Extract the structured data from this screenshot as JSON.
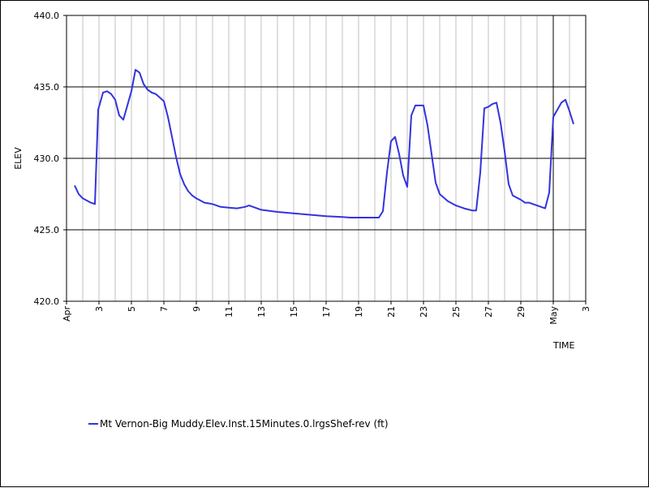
{
  "chart_data": {
    "type": "line",
    "xlabel": "TIME",
    "ylabel": "ELEV",
    "xlim": [
      0,
      32
    ],
    "ylim": [
      420.0,
      440.0
    ],
    "x_ticks": [
      {
        "x": 0,
        "label": "Apr"
      },
      {
        "x": 2,
        "label": "3"
      },
      {
        "x": 4,
        "label": "5"
      },
      {
        "x": 6,
        "label": "7"
      },
      {
        "x": 8,
        "label": "9"
      },
      {
        "x": 10,
        "label": "11"
      },
      {
        "x": 12,
        "label": "13"
      },
      {
        "x": 14,
        "label": "15"
      },
      {
        "x": 16,
        "label": "17"
      },
      {
        "x": 18,
        "label": "19"
      },
      {
        "x": 20,
        "label": "21"
      },
      {
        "x": 22,
        "label": "23"
      },
      {
        "x": 24,
        "label": "25"
      },
      {
        "x": 26,
        "label": "27"
      },
      {
        "x": 28,
        "label": "29"
      },
      {
        "x": 30,
        "label": "May"
      },
      {
        "x": 32,
        "label": "3"
      }
    ],
    "y_ticks": [
      "420.0",
      "425.0",
      "430.0",
      "435.0",
      "440.0"
    ],
    "grid": "vertical grid at each day tick; horizontal lines at 425, 430, 435; vertical marker at May 1",
    "legend_position": "bottom-left",
    "colors": {
      "line": "#3333dd",
      "grid_vertical": "#c0c0c0",
      "grid_horizontal": "#000000"
    },
    "series": [
      {
        "name": "Mt Vernon-Big Muddy.Elev.Inst.15Minutes.0.lrgsShef-rev (ft)",
        "points": [
          [
            0.5,
            428.1
          ],
          [
            0.75,
            427.5
          ],
          [
            1.0,
            427.2
          ],
          [
            1.5,
            426.9
          ],
          [
            1.75,
            426.8
          ],
          [
            1.95,
            433.4
          ],
          [
            2.25,
            434.6
          ],
          [
            2.5,
            434.7
          ],
          [
            2.75,
            434.5
          ],
          [
            3.0,
            434.1
          ],
          [
            3.25,
            433.0
          ],
          [
            3.5,
            432.7
          ],
          [
            4.0,
            434.7
          ],
          [
            4.25,
            436.2
          ],
          [
            4.5,
            436.0
          ],
          [
            4.75,
            435.2
          ],
          [
            5.0,
            434.8
          ],
          [
            5.25,
            434.6
          ],
          [
            5.5,
            434.5
          ],
          [
            6.0,
            434.0
          ],
          [
            6.25,
            432.9
          ],
          [
            6.5,
            431.5
          ],
          [
            6.75,
            430.1
          ],
          [
            7.0,
            428.9
          ],
          [
            7.25,
            428.2
          ],
          [
            7.5,
            427.7
          ],
          [
            7.75,
            427.4
          ],
          [
            8.0,
            427.2
          ],
          [
            8.5,
            426.9
          ],
          [
            9.0,
            426.8
          ],
          [
            9.5,
            426.6
          ],
          [
            10.0,
            426.55
          ],
          [
            10.5,
            426.5
          ],
          [
            11.0,
            426.6
          ],
          [
            11.25,
            426.7
          ],
          [
            11.5,
            426.6
          ],
          [
            12.0,
            426.4
          ],
          [
            13.0,
            426.25
          ],
          [
            14.0,
            426.15
          ],
          [
            15.0,
            426.05
          ],
          [
            16.0,
            425.95
          ],
          [
            17.0,
            425.9
          ],
          [
            17.5,
            425.85
          ],
          [
            18.0,
            425.85
          ],
          [
            18.5,
            425.85
          ],
          [
            19.25,
            425.85
          ],
          [
            19.5,
            426.3
          ],
          [
            19.75,
            429.0
          ],
          [
            20.0,
            431.2
          ],
          [
            20.25,
            431.5
          ],
          [
            20.5,
            430.3
          ],
          [
            20.75,
            428.8
          ],
          [
            21.0,
            428.0
          ],
          [
            21.25,
            433.0
          ],
          [
            21.5,
            433.7
          ],
          [
            22.0,
            433.7
          ],
          [
            22.25,
            432.3
          ],
          [
            22.5,
            430.3
          ],
          [
            22.75,
            428.3
          ],
          [
            23.0,
            427.5
          ],
          [
            23.5,
            427.0
          ],
          [
            24.0,
            426.7
          ],
          [
            24.5,
            426.5
          ],
          [
            25.0,
            426.35
          ],
          [
            25.25,
            426.35
          ],
          [
            25.5,
            429.0
          ],
          [
            25.75,
            433.5
          ],
          [
            26.0,
            433.6
          ],
          [
            26.25,
            433.8
          ],
          [
            26.5,
            433.9
          ],
          [
            26.75,
            432.5
          ],
          [
            27.0,
            430.5
          ],
          [
            27.25,
            428.2
          ],
          [
            27.5,
            427.4
          ],
          [
            28.0,
            427.1
          ],
          [
            28.25,
            426.9
          ],
          [
            28.5,
            426.9
          ],
          [
            29.0,
            426.7
          ],
          [
            29.5,
            426.5
          ],
          [
            29.75,
            427.6
          ],
          [
            30.0,
            432.9
          ],
          [
            30.25,
            433.4
          ],
          [
            30.5,
            433.9
          ],
          [
            30.75,
            434.1
          ],
          [
            31.0,
            433.3
          ],
          [
            31.25,
            432.4
          ]
        ]
      }
    ]
  }
}
